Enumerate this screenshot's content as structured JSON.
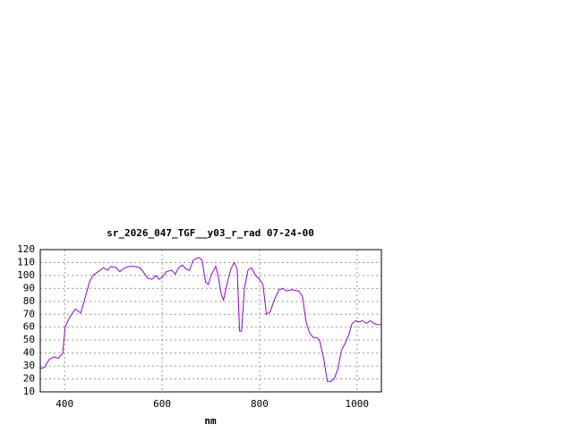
{
  "chart_data": {
    "type": "line",
    "title": "sr_2026_047_TGF__y03_r_rad 07-24-00",
    "x_label": "nm",
    "x": [
      350,
      359,
      368,
      378,
      387,
      396,
      401,
      407,
      414,
      422,
      429,
      433,
      440,
      451,
      458,
      469,
      480,
      488,
      495,
      506,
      513,
      524,
      533,
      543,
      554,
      561,
      570,
      579,
      587,
      594,
      601,
      609,
      620,
      627,
      634,
      642,
      649,
      656,
      664,
      675,
      682,
      689,
      695,
      700,
      710,
      715,
      721,
      726,
      733,
      741,
      748,
      754,
      759,
      763,
      769,
      776,
      783,
      792,
      800,
      807,
      814,
      822,
      829,
      840,
      848,
      855,
      866,
      880,
      888,
      895,
      902,
      910,
      917,
      923,
      932,
      939,
      946,
      953,
      961,
      968,
      976,
      983,
      990,
      998,
      1003,
      1011,
      1020,
      1027,
      1035,
      1042,
      1049
    ],
    "series": [
      {
        "color": "#9400d3",
        "values": [
          28,
          29,
          35,
          37,
          36,
          40,
          60,
          65,
          70,
          74,
          72,
          71,
          80,
          95,
          100,
          103,
          106,
          104,
          107,
          106,
          103,
          106,
          107,
          107,
          106,
          103,
          98,
          97,
          100,
          97,
          99,
          103,
          104,
          101,
          106,
          108,
          105,
          104,
          112,
          114,
          112,
          95,
          93,
          100,
          107,
          100,
          86,
          81,
          93,
          105,
          110,
          105,
          57,
          57,
          90,
          104,
          106,
          100,
          97,
          93,
          70,
          72,
          80,
          89,
          90,
          88,
          89,
          88,
          84,
          65,
          56,
          52,
          52,
          50,
          35,
          18,
          18,
          20,
          28,
          42,
          48,
          54,
          63,
          65,
          64,
          65,
          63,
          65,
          63,
          62,
          62
        ]
      }
    ],
    "xlim": [
      350,
      1050
    ],
    "ylim": [
      10,
      120
    ],
    "xticks": [
      400,
      600,
      800,
      1000
    ],
    "yticks": [
      10,
      20,
      30,
      40,
      50,
      60,
      70,
      80,
      90,
      100,
      110,
      120
    ],
    "grid": true
  }
}
